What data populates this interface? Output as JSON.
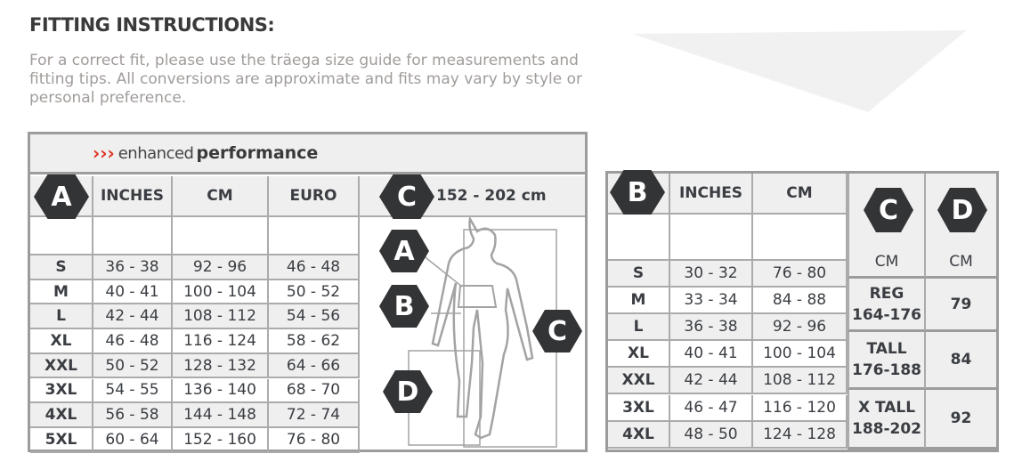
{
  "title": "FITTING INSTRUCTIONS:",
  "intro": "For a correct fit, please use the träega size guide for measurements and fitting tips. All conversions are approximate and fits may vary by style or personal preference.",
  "brand": {
    "arrows": "›››",
    "light": "enhanced",
    "bold": "performance",
    "accent": "#e0301e"
  },
  "left_table": {
    "badge": "A",
    "headers": [
      "INCHES",
      "CM",
      "EURO"
    ],
    "height_badge": "C",
    "height_range": "152 - 202 cm",
    "figure_badges": [
      "A",
      "B",
      "C",
      "D"
    ],
    "rows": [
      [
        "S",
        "36 - 38",
        "92 - 96",
        "46 - 48"
      ],
      [
        "M",
        "40 - 41",
        "100 - 104",
        "50 - 52"
      ],
      [
        "L",
        "42 - 44",
        "108 - 112",
        "54 - 56"
      ],
      [
        "XL",
        "46 - 48",
        "116 - 124",
        "58 - 62"
      ],
      [
        "XXL",
        "50 - 52",
        "128 - 132",
        "64 - 66"
      ],
      [
        "3XL",
        "54 - 55",
        "136 - 140",
        "68 - 70"
      ],
      [
        "4XL",
        "56 - 58",
        "144 - 148",
        "72 - 74"
      ],
      [
        "5XL",
        "60 - 64",
        "152 - 160",
        "76 - 80"
      ]
    ]
  },
  "right_table": {
    "badge": "B",
    "headers": [
      "INCHES",
      "CM"
    ],
    "c_badge": "C",
    "d_badge": "D",
    "c_unit": "CM",
    "d_unit": "CM",
    "rows": [
      [
        "S",
        "30 - 32",
        "76 - 80"
      ],
      [
        "M",
        "33 - 34",
        "84 - 88"
      ],
      [
        "L",
        "36 - 38",
        "92 - 96"
      ],
      [
        "XL",
        "40 - 41",
        "100 - 104"
      ],
      [
        "XXL",
        "42 - 44",
        "108 - 112"
      ],
      [
        "3XL",
        "46 - 47",
        "116 - 120"
      ],
      [
        "4XL",
        "48 - 50",
        "124 - 128"
      ]
    ],
    "groups": [
      {
        "label": "REG",
        "range": "164-176",
        "d": "79"
      },
      {
        "label": "TALL",
        "range": "176-188",
        "d": "84"
      },
      {
        "label": "X TALL",
        "range": "188-202",
        "d": "92"
      }
    ]
  }
}
